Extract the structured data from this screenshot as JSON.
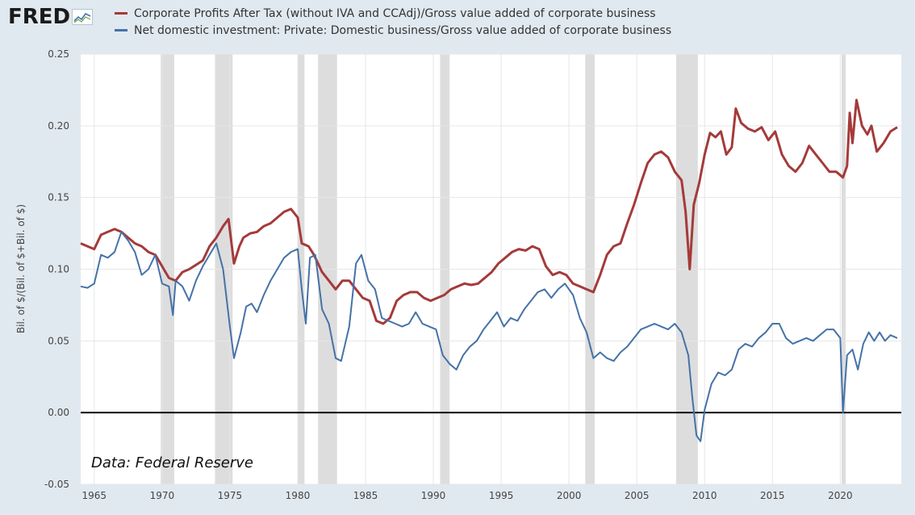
{
  "brand": {
    "name": "FRED"
  },
  "colors": {
    "profits": "#a53a3a",
    "investment": "#4572a7",
    "recession": "#dddddd",
    "zero_line": "#000000",
    "plot_bg": "#ffffff",
    "page_bg": "#e1e9f0"
  },
  "legend": [
    {
      "label": "Corporate Profits After Tax (without IVA and CCAdj)/Gross value added of corporate business",
      "color": "#a53a3a"
    },
    {
      "label": "Net domestic investment: Private: Domestic business/Gross value added of corporate business",
      "color": "#4572a7"
    }
  ],
  "note": "Data: Federal Reserve",
  "chart_data": {
    "type": "line",
    "ylabel": "Bil. of $/(Bil. of $+Bil. of $)",
    "ylim": [
      -0.05,
      0.25
    ],
    "xlim": [
      1964.0,
      2024.5
    ],
    "y_ticks": [
      "0.25",
      "0.20",
      "0.15",
      "0.10",
      "0.05",
      "0.00",
      "-0.05"
    ],
    "x_ticks": [
      "1965",
      "1970",
      "1975",
      "1980",
      "1985",
      "1990",
      "1995",
      "2000",
      "2005",
      "2010",
      "2015",
      "2020"
    ],
    "recessions": [
      [
        1969.9,
        1970.9
      ],
      [
        1973.9,
        1975.2
      ],
      [
        1980.0,
        1980.5
      ],
      [
        1981.5,
        1982.9
      ],
      [
        1990.5,
        1991.2
      ],
      [
        2001.2,
        2001.9
      ],
      [
        2007.9,
        2009.5
      ],
      [
        2020.1,
        2020.4
      ]
    ],
    "series": [
      {
        "name": "Corporate Profits After Tax (without IVA and CCAdj)/Gross value added of corporate business",
        "color": "#a53a3a",
        "points": [
          [
            1964.0,
            0.118
          ],
          [
            1964.5,
            0.116
          ],
          [
            1965.0,
            0.114
          ],
          [
            1965.5,
            0.124
          ],
          [
            1966.0,
            0.126
          ],
          [
            1966.5,
            0.128
          ],
          [
            1967.0,
            0.126
          ],
          [
            1967.5,
            0.122
          ],
          [
            1968.0,
            0.118
          ],
          [
            1968.5,
            0.116
          ],
          [
            1969.0,
            0.112
          ],
          [
            1969.5,
            0.11
          ],
          [
            1970.0,
            0.102
          ],
          [
            1970.5,
            0.094
          ],
          [
            1971.0,
            0.092
          ],
          [
            1971.5,
            0.098
          ],
          [
            1972.0,
            0.1
          ],
          [
            1972.5,
            0.103
          ],
          [
            1973.0,
            0.106
          ],
          [
            1973.5,
            0.116
          ],
          [
            1974.0,
            0.122
          ],
          [
            1974.5,
            0.13
          ],
          [
            1974.9,
            0.135
          ],
          [
            1975.3,
            0.104
          ],
          [
            1975.7,
            0.116
          ],
          [
            1976.0,
            0.122
          ],
          [
            1976.5,
            0.125
          ],
          [
            1977.0,
            0.126
          ],
          [
            1977.5,
            0.13
          ],
          [
            1978.0,
            0.132
          ],
          [
            1978.5,
            0.136
          ],
          [
            1979.0,
            0.14
          ],
          [
            1979.5,
            0.142
          ],
          [
            1980.0,
            0.136
          ],
          [
            1980.3,
            0.118
          ],
          [
            1980.8,
            0.116
          ],
          [
            1981.2,
            0.11
          ],
          [
            1981.8,
            0.098
          ],
          [
            1982.3,
            0.092
          ],
          [
            1982.8,
            0.086
          ],
          [
            1983.3,
            0.092
          ],
          [
            1983.8,
            0.092
          ],
          [
            1984.3,
            0.086
          ],
          [
            1984.8,
            0.08
          ],
          [
            1985.3,
            0.078
          ],
          [
            1985.8,
            0.064
          ],
          [
            1986.3,
            0.062
          ],
          [
            1986.8,
            0.066
          ],
          [
            1987.3,
            0.078
          ],
          [
            1987.8,
            0.082
          ],
          [
            1988.3,
            0.084
          ],
          [
            1988.8,
            0.084
          ],
          [
            1989.3,
            0.08
          ],
          [
            1989.8,
            0.078
          ],
          [
            1990.3,
            0.08
          ],
          [
            1990.8,
            0.082
          ],
          [
            1991.3,
            0.086
          ],
          [
            1991.8,
            0.088
          ],
          [
            1992.3,
            0.09
          ],
          [
            1992.8,
            0.089
          ],
          [
            1993.3,
            0.09
          ],
          [
            1993.8,
            0.094
          ],
          [
            1994.3,
            0.098
          ],
          [
            1994.8,
            0.104
          ],
          [
            1995.3,
            0.108
          ],
          [
            1995.8,
            0.112
          ],
          [
            1996.3,
            0.114
          ],
          [
            1996.8,
            0.113
          ],
          [
            1997.3,
            0.116
          ],
          [
            1997.8,
            0.114
          ],
          [
            1998.3,
            0.102
          ],
          [
            1998.8,
            0.096
          ],
          [
            1999.3,
            0.098
          ],
          [
            1999.8,
            0.096
          ],
          [
            2000.3,
            0.09
          ],
          [
            2000.8,
            0.088
          ],
          [
            2001.3,
            0.086
          ],
          [
            2001.8,
            0.084
          ],
          [
            2002.3,
            0.096
          ],
          [
            2002.8,
            0.11
          ],
          [
            2003.3,
            0.116
          ],
          [
            2003.8,
            0.118
          ],
          [
            2004.3,
            0.132
          ],
          [
            2004.8,
            0.145
          ],
          [
            2005.3,
            0.16
          ],
          [
            2005.8,
            0.174
          ],
          [
            2006.3,
            0.18
          ],
          [
            2006.8,
            0.182
          ],
          [
            2007.3,
            0.178
          ],
          [
            2007.8,
            0.168
          ],
          [
            2008.3,
            0.162
          ],
          [
            2008.6,
            0.14
          ],
          [
            2008.9,
            0.1
          ],
          [
            2009.2,
            0.145
          ],
          [
            2009.6,
            0.16
          ],
          [
            2010.0,
            0.18
          ],
          [
            2010.4,
            0.195
          ],
          [
            2010.8,
            0.192
          ],
          [
            2011.2,
            0.196
          ],
          [
            2011.6,
            0.18
          ],
          [
            2012.0,
            0.185
          ],
          [
            2012.3,
            0.212
          ],
          [
            2012.7,
            0.202
          ],
          [
            2013.2,
            0.198
          ],
          [
            2013.7,
            0.196
          ],
          [
            2014.2,
            0.199
          ],
          [
            2014.7,
            0.19
          ],
          [
            2015.2,
            0.196
          ],
          [
            2015.7,
            0.18
          ],
          [
            2016.2,
            0.172
          ],
          [
            2016.7,
            0.168
          ],
          [
            2017.2,
            0.174
          ],
          [
            2017.7,
            0.186
          ],
          [
            2018.2,
            0.18
          ],
          [
            2018.7,
            0.174
          ],
          [
            2019.2,
            0.168
          ],
          [
            2019.7,
            0.168
          ],
          [
            2020.2,
            0.164
          ],
          [
            2020.5,
            0.172
          ],
          [
            2020.7,
            0.209
          ],
          [
            2020.9,
            0.188
          ],
          [
            2021.2,
            0.218
          ],
          [
            2021.6,
            0.2
          ],
          [
            2022.0,
            0.194
          ],
          [
            2022.3,
            0.2
          ],
          [
            2022.7,
            0.182
          ],
          [
            2023.2,
            0.188
          ],
          [
            2023.7,
            0.196
          ],
          [
            2024.2,
            0.199
          ]
        ]
      },
      {
        "name": "Net domestic investment: Private: Domestic business/Gross value added of corporate business",
        "color": "#4572a7",
        "points": [
          [
            1964.0,
            0.088
          ],
          [
            1964.5,
            0.087
          ],
          [
            1965.0,
            0.09
          ],
          [
            1965.5,
            0.11
          ],
          [
            1966.0,
            0.108
          ],
          [
            1966.5,
            0.112
          ],
          [
            1967.0,
            0.126
          ],
          [
            1967.5,
            0.12
          ],
          [
            1968.0,
            0.112
          ],
          [
            1968.5,
            0.096
          ],
          [
            1969.0,
            0.1
          ],
          [
            1969.5,
            0.11
          ],
          [
            1970.0,
            0.09
          ],
          [
            1970.5,
            0.088
          ],
          [
            1970.8,
            0.068
          ],
          [
            1971.0,
            0.092
          ],
          [
            1971.5,
            0.088
          ],
          [
            1972.0,
            0.078
          ],
          [
            1972.5,
            0.092
          ],
          [
            1973.0,
            0.102
          ],
          [
            1973.5,
            0.11
          ],
          [
            1974.0,
            0.118
          ],
          [
            1974.5,
            0.1
          ],
          [
            1975.0,
            0.06
          ],
          [
            1975.3,
            0.038
          ],
          [
            1975.8,
            0.056
          ],
          [
            1976.2,
            0.074
          ],
          [
            1976.6,
            0.076
          ],
          [
            1977.0,
            0.07
          ],
          [
            1977.5,
            0.082
          ],
          [
            1978.0,
            0.092
          ],
          [
            1978.5,
            0.1
          ],
          [
            1979.0,
            0.108
          ],
          [
            1979.5,
            0.112
          ],
          [
            1980.0,
            0.114
          ],
          [
            1980.3,
            0.086
          ],
          [
            1980.6,
            0.062
          ],
          [
            1980.9,
            0.108
          ],
          [
            1981.3,
            0.11
          ],
          [
            1981.8,
            0.072
          ],
          [
            1982.3,
            0.062
          ],
          [
            1982.8,
            0.038
          ],
          [
            1983.2,
            0.036
          ],
          [
            1983.8,
            0.06
          ],
          [
            1984.3,
            0.104
          ],
          [
            1984.7,
            0.11
          ],
          [
            1985.2,
            0.092
          ],
          [
            1985.7,
            0.086
          ],
          [
            1986.2,
            0.066
          ],
          [
            1986.7,
            0.064
          ],
          [
            1987.2,
            0.062
          ],
          [
            1987.7,
            0.06
          ],
          [
            1988.2,
            0.062
          ],
          [
            1988.7,
            0.07
          ],
          [
            1989.2,
            0.062
          ],
          [
            1989.7,
            0.06
          ],
          [
            1990.2,
            0.058
          ],
          [
            1990.7,
            0.04
          ],
          [
            1991.2,
            0.034
          ],
          [
            1991.7,
            0.03
          ],
          [
            1992.2,
            0.04
          ],
          [
            1992.7,
            0.046
          ],
          [
            1993.2,
            0.05
          ],
          [
            1993.7,
            0.058
          ],
          [
            1994.2,
            0.064
          ],
          [
            1994.7,
            0.07
          ],
          [
            1995.2,
            0.06
          ],
          [
            1995.7,
            0.066
          ],
          [
            1996.2,
            0.064
          ],
          [
            1996.7,
            0.072
          ],
          [
            1997.2,
            0.078
          ],
          [
            1997.7,
            0.084
          ],
          [
            1998.2,
            0.086
          ],
          [
            1998.7,
            0.08
          ],
          [
            1999.2,
            0.086
          ],
          [
            1999.7,
            0.09
          ],
          [
            2000.3,
            0.082
          ],
          [
            2000.8,
            0.066
          ],
          [
            2001.3,
            0.056
          ],
          [
            2001.8,
            0.038
          ],
          [
            2002.3,
            0.042
          ],
          [
            2002.8,
            0.038
          ],
          [
            2003.3,
            0.036
          ],
          [
            2003.8,
            0.042
          ],
          [
            2004.3,
            0.046
          ],
          [
            2004.8,
            0.052
          ],
          [
            2005.3,
            0.058
          ],
          [
            2005.8,
            0.06
          ],
          [
            2006.3,
            0.062
          ],
          [
            2006.8,
            0.06
          ],
          [
            2007.3,
            0.058
          ],
          [
            2007.8,
            0.062
          ],
          [
            2008.3,
            0.056
          ],
          [
            2008.8,
            0.04
          ],
          [
            2009.1,
            0.01
          ],
          [
            2009.4,
            -0.016
          ],
          [
            2009.7,
            -0.02
          ],
          [
            2010.0,
            0.002
          ],
          [
            2010.5,
            0.02
          ],
          [
            2011.0,
            0.028
          ],
          [
            2011.5,
            0.026
          ],
          [
            2012.0,
            0.03
          ],
          [
            2012.5,
            0.044
          ],
          [
            2013.0,
            0.048
          ],
          [
            2013.5,
            0.046
          ],
          [
            2014.0,
            0.052
          ],
          [
            2014.5,
            0.056
          ],
          [
            2015.0,
            0.062
          ],
          [
            2015.5,
            0.062
          ],
          [
            2016.0,
            0.052
          ],
          [
            2016.5,
            0.048
          ],
          [
            2017.0,
            0.05
          ],
          [
            2017.5,
            0.052
          ],
          [
            2018.0,
            0.05
          ],
          [
            2018.5,
            0.054
          ],
          [
            2019.0,
            0.058
          ],
          [
            2019.5,
            0.058
          ],
          [
            2020.0,
            0.052
          ],
          [
            2020.2,
            0.0
          ],
          [
            2020.5,
            0.04
          ],
          [
            2020.9,
            0.044
          ],
          [
            2021.3,
            0.03
          ],
          [
            2021.7,
            0.048
          ],
          [
            2022.1,
            0.056
          ],
          [
            2022.5,
            0.05
          ],
          [
            2022.9,
            0.056
          ],
          [
            2023.3,
            0.05
          ],
          [
            2023.7,
            0.054
          ],
          [
            2024.2,
            0.052
          ]
        ]
      }
    ]
  }
}
